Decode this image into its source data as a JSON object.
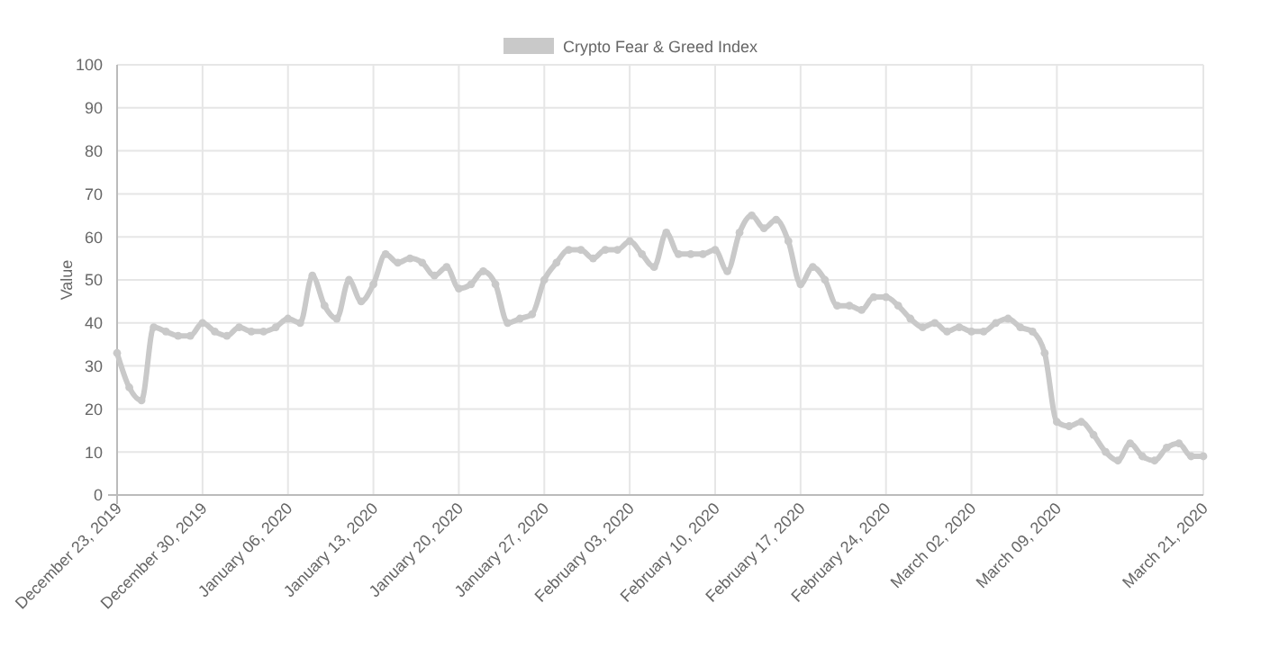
{
  "chart_data": {
    "type": "line",
    "ylabel": "Value",
    "legend": "top",
    "grid": true,
    "marker": "circle",
    "line_style": "solid",
    "x": [
      "2019-12-23",
      "2019-12-24",
      "2019-12-25",
      "2019-12-26",
      "2019-12-27",
      "2019-12-28",
      "2019-12-29",
      "2019-12-30",
      "2019-12-31",
      "2020-01-01",
      "2020-01-02",
      "2020-01-03",
      "2020-01-04",
      "2020-01-05",
      "2020-01-06",
      "2020-01-07",
      "2020-01-08",
      "2020-01-09",
      "2020-01-10",
      "2020-01-11",
      "2020-01-12",
      "2020-01-13",
      "2020-01-14",
      "2020-01-15",
      "2020-01-16",
      "2020-01-17",
      "2020-01-18",
      "2020-01-19",
      "2020-01-20",
      "2020-01-21",
      "2020-01-22",
      "2020-01-23",
      "2020-01-24",
      "2020-01-25",
      "2020-01-26",
      "2020-01-27",
      "2020-01-28",
      "2020-01-29",
      "2020-01-30",
      "2020-01-31",
      "2020-02-01",
      "2020-02-02",
      "2020-02-03",
      "2020-02-04",
      "2020-02-05",
      "2020-02-06",
      "2020-02-07",
      "2020-02-08",
      "2020-02-09",
      "2020-02-10",
      "2020-02-11",
      "2020-02-12",
      "2020-02-13",
      "2020-02-14",
      "2020-02-15",
      "2020-02-16",
      "2020-02-17",
      "2020-02-18",
      "2020-02-19",
      "2020-02-20",
      "2020-02-21",
      "2020-02-22",
      "2020-02-23",
      "2020-02-24",
      "2020-02-25",
      "2020-02-26",
      "2020-02-27",
      "2020-02-28",
      "2020-02-29",
      "2020-03-01",
      "2020-03-02",
      "2020-03-03",
      "2020-03-04",
      "2020-03-05",
      "2020-03-06",
      "2020-03-07",
      "2020-03-08",
      "2020-03-09",
      "2020-03-10",
      "2020-03-11",
      "2020-03-12",
      "2020-03-13",
      "2020-03-14",
      "2020-03-15",
      "2020-03-16",
      "2020-03-17",
      "2020-03-18",
      "2020-03-19",
      "2020-03-20",
      "2020-03-21"
    ],
    "series": [
      {
        "name": "Crypto Fear & Greed Index",
        "color": "#c9c9c9",
        "values": [
          33,
          25,
          22,
          39,
          38,
          37,
          37,
          40,
          38,
          37,
          39,
          38,
          38,
          39,
          41,
          40,
          51,
          44,
          41,
          50,
          45,
          49,
          56,
          54,
          55,
          54,
          51,
          53,
          48,
          49,
          52,
          49,
          40,
          41,
          42,
          50,
          54,
          57,
          57,
          55,
          57,
          57,
          59,
          56,
          53,
          61,
          56,
          56,
          56,
          57,
          52,
          61,
          65,
          62,
          64,
          59,
          49,
          53,
          50,
          44,
          44,
          43,
          46,
          46,
          44,
          41,
          39,
          40,
          38,
          39,
          38,
          38,
          40,
          41,
          39,
          38,
          33,
          17,
          16,
          17,
          14,
          10,
          8,
          12,
          9,
          8,
          11,
          12,
          9,
          9
        ]
      }
    ],
    "xlim": [
      "2019-12-23",
      "2020-03-21"
    ],
    "xticks": [
      {
        "value": "2019-12-23",
        "label": "December 23, 2019"
      },
      {
        "value": "2019-12-30",
        "label": "December 30, 2019"
      },
      {
        "value": "2020-01-06",
        "label": "January 06, 2020"
      },
      {
        "value": "2020-01-13",
        "label": "January 13, 2020"
      },
      {
        "value": "2020-01-20",
        "label": "January 20, 2020"
      },
      {
        "value": "2020-01-27",
        "label": "January 27, 2020"
      },
      {
        "value": "2020-02-03",
        "label": "February 03, 2020"
      },
      {
        "value": "2020-02-10",
        "label": "February 10, 2020"
      },
      {
        "value": "2020-02-17",
        "label": "February 17, 2020"
      },
      {
        "value": "2020-02-24",
        "label": "February 24, 2020"
      },
      {
        "value": "2020-03-02",
        "label": "March 02, 2020"
      },
      {
        "value": "2020-03-09",
        "label": "March 09, 2020"
      },
      {
        "value": "2020-03-21",
        "label": "March 21, 2020"
      }
    ],
    "ylim": [
      0,
      100
    ],
    "yticks": [
      0,
      10,
      20,
      30,
      40,
      50,
      60,
      70,
      80,
      90,
      100
    ]
  }
}
